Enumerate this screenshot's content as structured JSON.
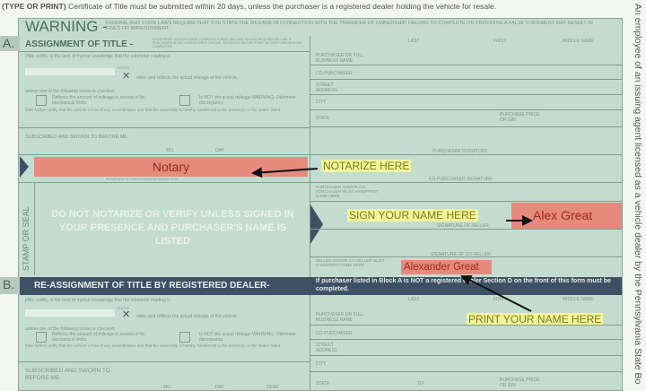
{
  "top_notice": {
    "bold": "(TYPE OR PRINT)",
    "text": " Certificate of Title must be submitted within 20 days, unless the purchaser is a registered dealer holding the vehicle for resale."
  },
  "warning": {
    "title": "WARNING -",
    "text": "FEDERAL AND STATE LAWS REQUIRE THAT YOU STATE THE MILEAGE IN CONNECTION WITH THE TRANSFER OF OWNERSHIP. FAILURE TO COMPLETE OR PROVIDING A FALSE STATEMENT MAY RESULT IN FINES OR IMPRISONMENT."
  },
  "section_a": {
    "letter": "A.",
    "title": "ASSIGNMENT OF TITLE -",
    "note": "Registered dealers must complete forms MV-2 and MV-4 as required by law. If purchaser is NOT a registered dealer, Section D on the front of this form must be completed.",
    "certify": "I/We certify, to the best of my/our knowledge that the odometer reading is",
    "tenths": "TENTHS",
    "miles": "miles and reflects the actual mileage of the vehicle,",
    "unless": "unless one of the following boxes is checked:",
    "box1": "Reflects the amount of mileage in excess of its mechanical limits",
    "box2": "Is NOT the actual mileage WARNING: Odometer discrepancy",
    "further": "I/We further certify that the vehicle is free of any encumbrance and that the ownership is hereby transferred to the person(s) or the dealer listed.",
    "sworn": "SUBSCRIBED AND SWORN TO BEFORE ME:",
    "mo": "MO.",
    "day": "DAY",
    "notary_value": "Notary",
    "notary_caption": "SIGNATURE OF PERSON ADMINISTERING OATH",
    "stamp": "STAMP OR SEAL",
    "stamp_warning": "DO NOT NOTARIZE OR VERIFY UNLESS SIGNED IN YOUR PRESENCE AND PURCHASER'S NAME IS LISTED"
  },
  "right_a": {
    "last": "LAST",
    "first": "FIRST",
    "middle": "MIDDLE NAME",
    "purchaser": "PURCHASER OR FULL BUSINESS NAME",
    "co_purchaser": "CO-PURCHASER",
    "street": "STREET ADDRESS",
    "city": "CITY",
    "state": "STATE",
    "price": "PURCHASE PRICE OR GIN",
    "purchaser_sig": "PURCHASER SIGNATURE",
    "co_purchaser_sig": "CO-PURCHASER SIGNATURE",
    "handprint": "PURCHASER AND/OR CO-PURCHASER MUST HANDPRINT NAME HERE",
    "seller_sig": "SIGNATURE OF SELLER",
    "seller_sig_value": "Alex Great",
    "co_seller_sig": "SIGNATURE OF CO-SELLER",
    "seller_print": "SELLER AND/OR CO-SELLER MUST HANDPRINT NAME HERE",
    "seller_print_value": "Alexander Great"
  },
  "annotations": {
    "notarize": "NOTARIZE HERE",
    "sign": "SIGN YOUR NAME HERE",
    "print": "PRINT YOUR NAME HERE"
  },
  "section_b": {
    "letter": "B.",
    "title": "RE-ASSIGNMENT OF TITLE BY REGISTERED DEALER-",
    "notice": "If purchaser listed in Block A is NOT a registered dealer Section D on the front of this form must be completed.",
    "certify": "I/We certify, to the best of my/our knowledge that the odometer reading is",
    "tenths": "TENTHS",
    "miles": "miles and reflects the actual mileage of the vehicle,",
    "unless": "unless one of the following boxes is checked:",
    "box1": "Reflects the amount of mileage in excess of its mechanical limits",
    "box2": "Is NOT the actual mileage WARNING: Odometer discrepancy",
    "further": "I/We further certify that the vehicle is free of any encumbrance and that the ownership is hereby transferred to the person(s) or the dealer listed.",
    "sworn": "SUBSCRIBED AND SWORN TO BEFORE ME:",
    "mo": "MO.",
    "day": "DAY",
    "year": "YEAR"
  },
  "right_b": {
    "last": "LAST",
    "first": "FIRST",
    "middle": "MIDDLE NAME",
    "purchaser": "PURCHASER OR FULL BUSINESS NAME",
    "co_purchaser": "CO-PURCHASER",
    "street": "STREET ADDRESS",
    "city": "CITY",
    "state": "STATE",
    "zip": "ZIP",
    "price": "PURCHASE PRICE OR GIN"
  },
  "side_text": "An employee of an issuing agent licensed as a vehicle dealer by the Pennsylvania State Bo",
  "colors": {
    "form_bg": "#c4dccf",
    "dark_bar": "#3e5164",
    "highlight_pink": "#e58a7c",
    "highlight_yellow": "#f2f59a"
  }
}
